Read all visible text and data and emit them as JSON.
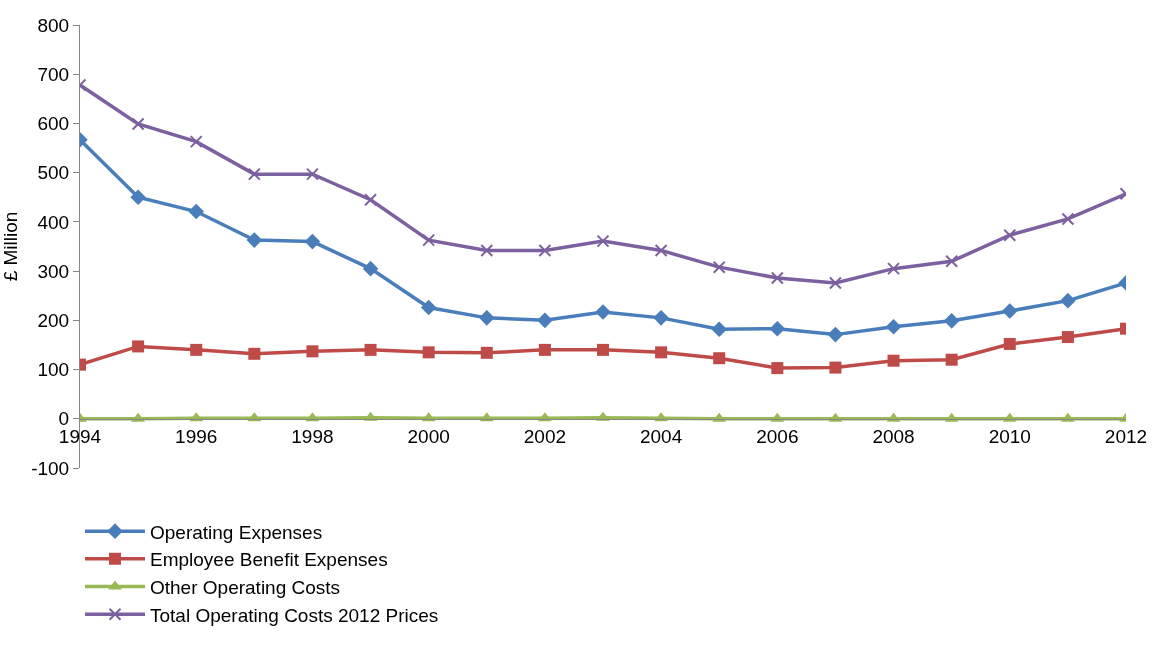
{
  "chart_data": {
    "type": "line",
    "ylabel": "£ Million",
    "x": [
      1994,
      1995,
      1996,
      1997,
      1998,
      1999,
      2000,
      2001,
      2002,
      2003,
      2004,
      2005,
      2006,
      2007,
      2008,
      2009,
      2010,
      2011,
      2012
    ],
    "xlim": [
      1994,
      2012
    ],
    "xticks": [
      1994,
      1996,
      1998,
      2000,
      2002,
      2004,
      2006,
      2008,
      2010,
      2012
    ],
    "ylim": [
      -100,
      800
    ],
    "yticks": [
      -100,
      0,
      100,
      200,
      300,
      400,
      500,
      600,
      700,
      800
    ],
    "grid": false,
    "legend": "bottom",
    "series": [
      {
        "name": "Operating Expenses",
        "color": "#4a7ebb",
        "marker": "diamond",
        "values": [
          567,
          450,
          421,
          363,
          360,
          305,
          226,
          205,
          200,
          217,
          205,
          182,
          183,
          171,
          187,
          199,
          219,
          240,
          276
        ]
      },
      {
        "name": "Employee Benefit Expenses",
        "color": "#be4b48",
        "marker": "square",
        "values": [
          110,
          147,
          140,
          132,
          137,
          140,
          135,
          134,
          140,
          140,
          135,
          123,
          103,
          104,
          118,
          120,
          152,
          166,
          183
        ]
      },
      {
        "name": "Other Operating Costs",
        "color": "#98b954",
        "marker": "triangle",
        "values": [
          0,
          0,
          1,
          1,
          1,
          2,
          1,
          1,
          1,
          2,
          1,
          0,
          0,
          0,
          0,
          0,
          0,
          0,
          0
        ]
      },
      {
        "name": "Total Operating Costs 2012 Prices",
        "color": "#7d60a0",
        "marker": "cross",
        "values": [
          678,
          599,
          563,
          497,
          497,
          445,
          363,
          342,
          342,
          361,
          342,
          308,
          286,
          276,
          305,
          320,
          373,
          406,
          457
        ]
      }
    ]
  }
}
